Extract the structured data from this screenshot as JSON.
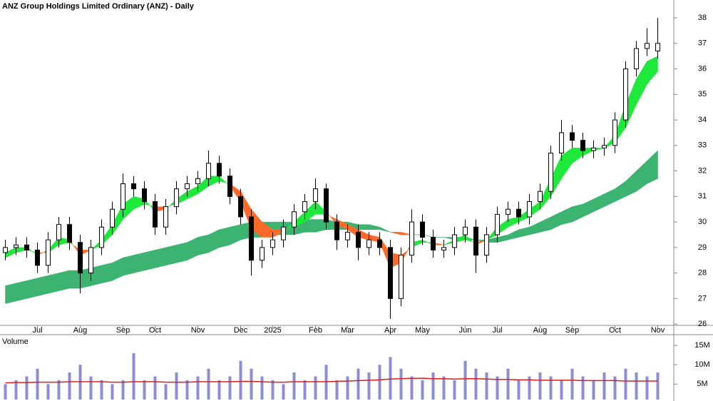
{
  "chart_data": [
    {
      "type": "candlestick",
      "title": "ANZ Group Holdings Limited Ordinary (ANZ) - Daily",
      "categories": [
        null,
        null,
        null,
        "Jul",
        null,
        null,
        null,
        "Aug",
        null,
        null,
        null,
        "Sep",
        null,
        null,
        "Oct",
        null,
        null,
        null,
        "Nov",
        null,
        null,
        null,
        "Dec",
        null,
        null,
        "2025",
        null,
        null,
        null,
        "Feb",
        null,
        null,
        "Mar",
        null,
        null,
        null,
        "Apr",
        null,
        null,
        "May",
        null,
        null,
        null,
        "Jun",
        null,
        null,
        "Jul",
        null,
        null,
        null,
        "Aug",
        null,
        null,
        "Sep",
        null,
        null,
        null,
        "Oct",
        null,
        null,
        null,
        "Nov"
      ],
      "open": [
        28.8,
        29.0,
        29.1,
        28.9,
        28.3,
        29.3,
        29.9,
        29.2,
        28.0,
        29.0,
        29.8,
        30.5,
        31.5,
        31.3,
        30.8,
        29.8,
        30.6,
        31.3,
        31.5,
        31.7,
        32.3,
        31.8,
        31.0,
        30.2,
        28.5,
        29.0,
        29.3,
        29.8,
        30.4,
        30.8,
        31.3,
        30.0,
        29.3,
        29.6,
        29.0,
        29.3,
        29.0,
        27.0,
        28.7,
        30.0,
        29.4,
        28.9,
        29.0,
        29.5,
        29.8,
        28.7,
        29.5,
        30.3,
        30.5,
        30.2,
        30.8,
        31.2,
        32.7,
        33.5,
        33.2,
        32.8,
        32.9,
        33.0,
        34.0,
        36.0,
        36.8,
        36.7
      ],
      "high": [
        29.3,
        29.4,
        29.4,
        29.2,
        29.6,
        30.2,
        30.2,
        29.5,
        29.3,
        30.1,
        30.8,
        31.9,
        31.8,
        31.6,
        31.1,
        30.9,
        31.6,
        31.8,
        32.0,
        32.8,
        32.6,
        32.1,
        31.3,
        30.5,
        29.3,
        29.6,
        30.1,
        30.7,
        31.1,
        31.7,
        31.5,
        30.3,
        29.9,
        29.9,
        29.6,
        29.6,
        29.3,
        29.0,
        30.5,
        30.3,
        29.7,
        29.3,
        29.8,
        30.1,
        30.1,
        29.8,
        30.6,
        30.8,
        30.8,
        31.1,
        31.5,
        33.0,
        34.0,
        33.8,
        33.5,
        33.2,
        33.3,
        34.3,
        36.3,
        37.1,
        37.6,
        38.0
      ],
      "low": [
        28.5,
        28.7,
        28.6,
        28.0,
        28.0,
        29.0,
        28.9,
        27.2,
        27.7,
        28.7,
        29.5,
        30.2,
        31.0,
        30.5,
        29.5,
        29.5,
        30.3,
        31.0,
        31.2,
        31.4,
        31.5,
        30.7,
        29.9,
        27.9,
        28.2,
        28.7,
        29.0,
        29.5,
        30.1,
        30.5,
        29.7,
        28.9,
        29.0,
        28.5,
        28.7,
        28.7,
        26.2,
        26.7,
        28.4,
        29.1,
        28.6,
        28.6,
        28.7,
        29.2,
        28.0,
        28.4,
        29.2,
        30.0,
        29.9,
        29.9,
        30.5,
        30.9,
        32.4,
        32.9,
        32.5,
        32.5,
        32.6,
        32.7,
        33.7,
        35.7,
        36.5,
        36.4
      ],
      "close": [
        29.0,
        29.1,
        28.9,
        28.3,
        29.3,
        29.9,
        29.2,
        28.0,
        29.0,
        29.8,
        30.5,
        31.5,
        31.3,
        30.8,
        29.8,
        30.6,
        31.3,
        31.5,
        31.7,
        32.3,
        31.8,
        31.0,
        30.2,
        28.5,
        29.0,
        29.3,
        29.8,
        30.4,
        30.8,
        31.3,
        30.0,
        29.3,
        29.6,
        29.0,
        29.3,
        29.0,
        27.0,
        28.7,
        30.0,
        29.4,
        28.9,
        29.0,
        29.5,
        29.8,
        28.7,
        29.5,
        30.3,
        30.5,
        30.2,
        30.8,
        31.2,
        32.7,
        33.5,
        33.2,
        32.8,
        32.9,
        33.0,
        34.0,
        36.0,
        36.8,
        37.0,
        37.0
      ],
      "fast_ribbon": {
        "short": [
          28.8,
          29.0,
          29.0,
          28.7,
          28.9,
          29.4,
          29.3,
          28.7,
          28.9,
          29.3,
          29.9,
          30.7,
          31.0,
          30.9,
          30.4,
          30.5,
          30.9,
          31.2,
          31.4,
          31.8,
          31.8,
          31.4,
          30.8,
          29.7,
          29.4,
          29.4,
          29.6,
          30.0,
          30.4,
          30.8,
          30.4,
          29.9,
          29.7,
          29.4,
          29.3,
          29.2,
          28.2,
          28.4,
          29.2,
          29.3,
          29.1,
          29.1,
          29.3,
          29.5,
          29.1,
          29.3,
          29.8,
          30.1,
          30.2,
          30.5,
          30.8,
          31.7,
          32.6,
          32.9,
          32.9,
          32.9,
          32.9,
          33.4,
          34.6,
          35.6,
          36.3,
          36.5
        ],
        "long": [
          28.6,
          28.8,
          28.9,
          28.8,
          28.8,
          29.1,
          29.2,
          28.9,
          28.9,
          29.1,
          29.5,
          30.1,
          30.5,
          30.7,
          30.6,
          30.6,
          30.7,
          30.9,
          31.1,
          31.4,
          31.6,
          31.5,
          31.2,
          30.5,
          30.0,
          29.7,
          29.7,
          29.8,
          30.0,
          30.3,
          30.3,
          30.1,
          29.9,
          29.7,
          29.5,
          29.4,
          28.8,
          28.7,
          29.0,
          29.2,
          29.2,
          29.1,
          29.2,
          29.3,
          29.2,
          29.3,
          29.5,
          29.8,
          30.0,
          30.2,
          30.5,
          31.0,
          31.7,
          32.3,
          32.6,
          32.8,
          32.9,
          33.1,
          33.7,
          34.6,
          35.4,
          35.9
        ],
        "up_color": "#1ee83a",
        "down_color": "#ff6a2a"
      },
      "slow_ribbon": {
        "short": [
          27.5,
          27.6,
          27.7,
          27.8,
          27.9,
          28.0,
          28.1,
          28.1,
          28.2,
          28.3,
          28.4,
          28.6,
          28.7,
          28.8,
          28.9,
          29.0,
          29.1,
          29.2,
          29.4,
          29.5,
          29.7,
          29.8,
          29.9,
          30.0,
          30.0,
          30.0,
          30.0,
          30.0,
          30.1,
          30.1,
          30.1,
          30.0,
          30.0,
          29.9,
          29.9,
          29.8,
          29.6,
          29.5,
          29.5,
          29.5,
          29.4,
          29.4,
          29.4,
          29.4,
          29.3,
          29.3,
          29.4,
          29.5,
          29.7,
          29.8,
          30.0,
          30.2,
          30.4,
          30.6,
          30.7,
          30.9,
          31.1,
          31.3,
          31.6,
          32.0,
          32.4,
          32.8
        ],
        "long": [
          26.8,
          26.9,
          27.0,
          27.1,
          27.2,
          27.3,
          27.4,
          27.4,
          27.5,
          27.6,
          27.7,
          27.9,
          28.0,
          28.1,
          28.2,
          28.3,
          28.4,
          28.5,
          28.7,
          28.8,
          29.0,
          29.1,
          29.3,
          29.4,
          29.4,
          29.5,
          29.5,
          29.5,
          29.6,
          29.6,
          29.7,
          29.7,
          29.7,
          29.7,
          29.7,
          29.7,
          29.6,
          29.6,
          29.5,
          29.5,
          29.4,
          29.4,
          29.3,
          29.3,
          29.3,
          29.2,
          29.2,
          29.3,
          29.4,
          29.5,
          29.6,
          29.7,
          29.9,
          30.0,
          30.2,
          30.4,
          30.6,
          30.8,
          31.0,
          31.2,
          31.5,
          31.7
        ],
        "up_color": "#3cb371",
        "down_color": "#ff6a2a"
      },
      "up_color": "#ffffff",
      "down_color": "#000000",
      "ylim": [
        25.78,
        38.7
      ],
      "yticks": [
        26,
        27,
        28,
        29,
        30,
        31,
        32,
        33,
        34,
        35,
        36,
        37,
        38
      ]
    },
    {
      "type": "bar",
      "title": "Volume",
      "values": [
        5,
        6,
        7,
        9,
        5,
        6,
        8,
        10,
        7,
        6,
        5,
        6,
        13,
        6,
        7,
        5,
        8,
        6,
        7,
        9,
        6,
        7,
        11,
        9,
        7,
        6,
        5,
        8,
        6,
        7,
        10,
        6,
        7,
        9,
        8,
        10,
        12,
        9,
        7,
        6,
        8,
        7,
        6,
        11,
        9,
        8,
        7,
        9,
        6,
        7,
        8,
        7,
        6,
        9,
        7,
        6,
        8,
        7,
        9,
        8,
        7,
        8
      ],
      "average": [
        5.3,
        5.4,
        5.4,
        5.5,
        5.5,
        5.5,
        5.6,
        5.6,
        5.6,
        5.6,
        5.5,
        5.5,
        5.6,
        5.6,
        5.6,
        5.5,
        5.5,
        5.5,
        5.6,
        5.6,
        5.6,
        5.6,
        5.7,
        5.7,
        5.6,
        5.5,
        5.5,
        5.6,
        5.6,
        5.6,
        5.6,
        5.7,
        5.8,
        5.9,
        6.0,
        6.1,
        6.3,
        6.4,
        6.5,
        6.5,
        6.4,
        6.4,
        6.3,
        6.4,
        6.4,
        6.3,
        6.2,
        6.2,
        6.1,
        6.1,
        6.0,
        6.0,
        6.0,
        6.0,
        5.9,
        5.9,
        5.9,
        5.9,
        5.8,
        5.8,
        5.8,
        5.8
      ],
      "color": "#8c8cd8",
      "average_color": "#d62020",
      "ylim": [
        1,
        17.6
      ],
      "yticks": [
        {
          "value": 5,
          "label": "5M"
        },
        {
          "value": 10,
          "label": "10M"
        },
        {
          "value": 15,
          "label": "15M"
        }
      ]
    }
  ]
}
